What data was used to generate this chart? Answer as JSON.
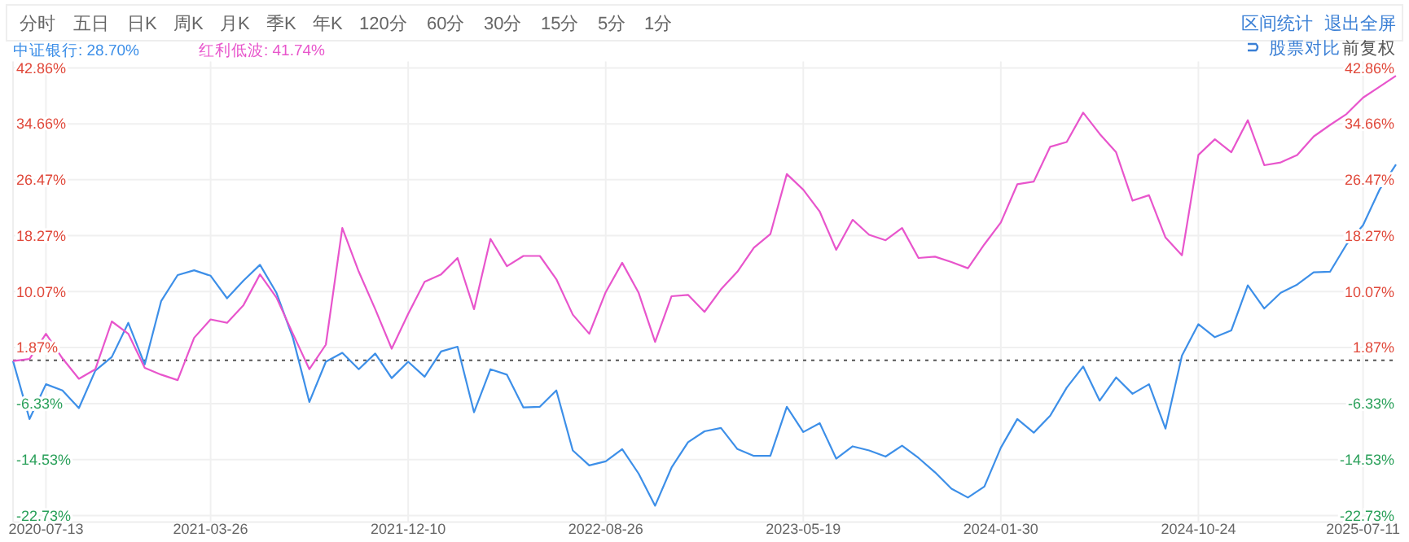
{
  "chart_data": {
    "type": "line",
    "categories": [
      null,
      null,
      "2020-07-13",
      null,
      null,
      null,
      null,
      null,
      null,
      null,
      null,
      null,
      "2021-03-26",
      null,
      null,
      null,
      null,
      null,
      null,
      null,
      null,
      null,
      null,
      null,
      "2021-12-10",
      null,
      null,
      null,
      null,
      null,
      null,
      null,
      null,
      null,
      null,
      null,
      "2022-08-26",
      null,
      null,
      null,
      null,
      null,
      null,
      null,
      null,
      null,
      null,
      null,
      "2023-05-19",
      null,
      null,
      null,
      null,
      null,
      null,
      null,
      null,
      null,
      null,
      null,
      "2024-01-30",
      null,
      null,
      null,
      null,
      null,
      null,
      null,
      null,
      null,
      null,
      null,
      "2024-10-24",
      null,
      null,
      null,
      null,
      null,
      null,
      null,
      null,
      null,
      "2025-07-11",
      null,
      null
    ],
    "series": [
      {
        "name": "中证银行: 28.70%",
        "color": "#3d8fe8",
        "values": [
          -0.1,
          -8.6,
          -3.5,
          -4.4,
          -7.0,
          -1.5,
          0.5,
          5.5,
          -0.6,
          8.7,
          12.5,
          13.2,
          12.4,
          9.1,
          11.7,
          14.0,
          9.9,
          3.3,
          -6.1,
          -0.2,
          1.1,
          -1.3,
          1.0,
          -2.6,
          -0.2,
          -2.4,
          1.3,
          2.0,
          -7.6,
          -1.3,
          -2.1,
          -6.9,
          -6.8,
          -4.4,
          -13.2,
          -15.4,
          -14.8,
          -13.0,
          -16.6,
          -21.3,
          -15.7,
          -12.0,
          -10.4,
          -9.9,
          -13.0,
          -14.0,
          -14.0,
          -6.8,
          -10.5,
          -9.2,
          -14.4,
          -12.6,
          -13.2,
          -14.1,
          -12.5,
          -14.3,
          -16.4,
          -18.8,
          -20.1,
          -18.5,
          -12.8,
          -8.6,
          -10.6,
          -8.1,
          -4.0,
          -0.9,
          -5.9,
          -2.5,
          -4.9,
          -3.5,
          -10.0,
          0.7,
          5.3,
          3.4,
          4.4,
          11.0,
          7.6,
          9.9,
          11.1,
          12.9,
          13.0,
          17.0,
          19.8,
          25.0,
          28.7
        ]
      },
      {
        "name": "红利低波: 41.74%",
        "color": "#e855cc",
        "values": [
          -0.1,
          0.2,
          3.9,
          0.3,
          -2.7,
          -1.3,
          5.7,
          3.9,
          -1.1,
          -2.1,
          -2.9,
          3.3,
          6.0,
          5.5,
          8.1,
          12.6,
          9.2,
          3.9,
          -1.3,
          2.3,
          19.4,
          13.0,
          7.5,
          1.7,
          6.8,
          11.5,
          12.6,
          15.0,
          7.5,
          17.8,
          13.8,
          15.3,
          15.3,
          11.9,
          6.7,
          3.9,
          10.0,
          14.3,
          9.9,
          2.7,
          9.4,
          9.6,
          7.1,
          10.4,
          13.0,
          16.5,
          18.5,
          27.3,
          25.0,
          21.8,
          16.2,
          20.6,
          18.4,
          17.6,
          19.4,
          15.0,
          15.2,
          14.4,
          13.5,
          17.0,
          20.2,
          25.8,
          26.2,
          31.3,
          32.0,
          36.3,
          33.2,
          30.5,
          23.4,
          24.2,
          18.0,
          15.4,
          30.1,
          32.4,
          30.5,
          35.2,
          28.6,
          29.0,
          30.1,
          32.8,
          34.5,
          36.1,
          38.5,
          40.1,
          41.7
        ]
      }
    ],
    "ylim": [
      -22.73,
      42.86
    ],
    "yticks": [
      {
        "value": 42.86,
        "label": "42.86%"
      },
      {
        "value": 34.66,
        "label": "34.66%"
      },
      {
        "value": 26.47,
        "label": "26.47%"
      },
      {
        "value": 18.27,
        "label": "18.27%"
      },
      {
        "value": 10.07,
        "label": "10.07%"
      },
      {
        "value": 1.87,
        "label": "1.87%"
      },
      {
        "value": -6.33,
        "label": "-6.33%"
      },
      {
        "value": -14.53,
        "label": "-14.53%"
      },
      {
        "value": -22.73,
        "label": "-22.73%"
      }
    ],
    "y2lim": [
      -22.73,
      42.86
    ],
    "y2ticks": [
      {
        "value": 42.86,
        "label": "42.86%"
      },
      {
        "value": 34.66,
        "label": "34.66%"
      },
      {
        "value": 26.47,
        "label": "26.47%"
      },
      {
        "value": 18.27,
        "label": "18.27%"
      },
      {
        "value": 10.07,
        "label": "10.07%"
      },
      {
        "value": 1.87,
        "label": "1.87%"
      },
      {
        "value": -6.33,
        "label": "-6.33%"
      },
      {
        "value": -14.53,
        "label": "-14.53%"
      },
      {
        "value": -22.73,
        "label": "-22.73%"
      }
    ],
    "ref_lines": [
      {
        "axis": "y",
        "value": 0,
        "color": "#555555",
        "line_style": "dotted"
      }
    ],
    "grid": true,
    "legend": "top left",
    "marker": "none",
    "line_style": "solid",
    "annotations": [
      "分时",
      "五日",
      "日K",
      "周K",
      "月K",
      "季K",
      "年K",
      "120分",
      "60分",
      "30分",
      "15分",
      "5分",
      "1分",
      "区间统计",
      "退出全屏",
      "股票对比",
      "前复权"
    ]
  }
}
